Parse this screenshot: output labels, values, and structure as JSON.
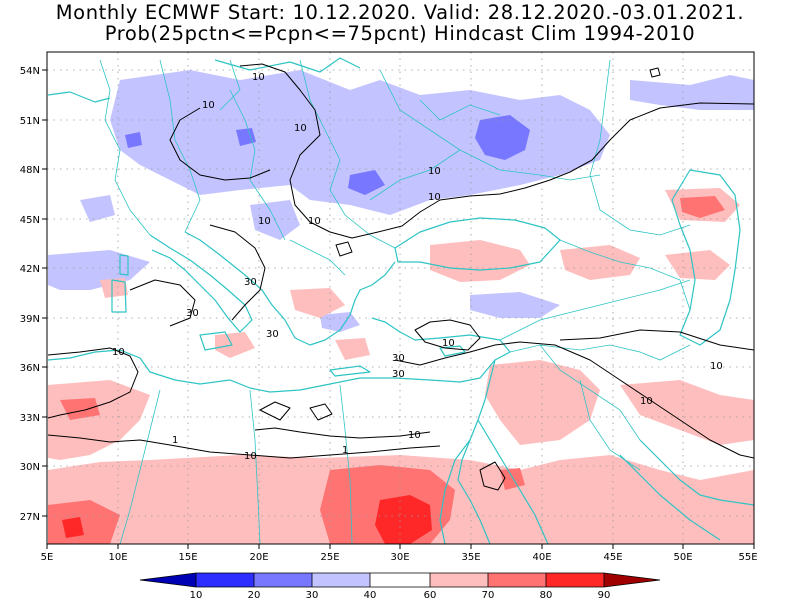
{
  "title": {
    "line1": "Monthly ECMWF Start: 10.12.2020. Valid: 28.12.2020.-03.01.2021.",
    "line2": "Prob(25pctn<=Pcpn<=75pcnt) Hindcast Clim 1994-2010"
  },
  "axes": {
    "lat_labels": [
      "54N",
      "51N",
      "48N",
      "45N",
      "42N",
      "39N",
      "36N",
      "33N",
      "30N",
      "27N"
    ],
    "lon_labels": [
      "5E",
      "10E",
      "15E",
      "20E",
      "25E",
      "30E",
      "35E",
      "40E",
      "45E",
      "50E",
      "55E"
    ]
  },
  "contour_labels": {
    "ten": "10",
    "thirty": "30",
    "one": "1"
  },
  "colorbar": {
    "labels": [
      "10",
      "20",
      "30",
      "40",
      "60",
      "70",
      "80",
      "90"
    ],
    "colors": [
      "#0000b4",
      "#2d2dff",
      "#7777ff",
      "#c3c3ff",
      "#ffffff",
      "#ffbebe",
      "#ff7373",
      "#ff2828",
      "#a00000"
    ]
  },
  "map_colors": {
    "coast": "#2ec4c4",
    "border": "#2ec4c4",
    "contour": "#000000",
    "grid": "#9a9a9a"
  }
}
